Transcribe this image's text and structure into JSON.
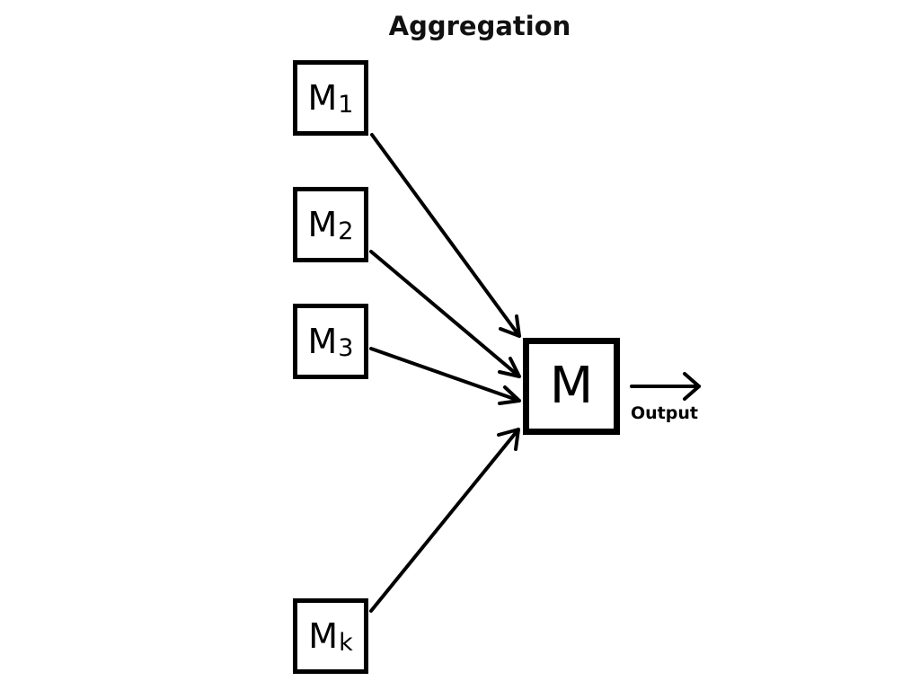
{
  "title": "Aggregation",
  "models": [
    {
      "letter": "M",
      "subscript": "1"
    },
    {
      "letter": "M",
      "subscript": "2"
    },
    {
      "letter": "M",
      "subscript": "3"
    },
    {
      "letter": "M",
      "subscript": "k"
    }
  ],
  "aggregate": {
    "letter": "M"
  },
  "output_label": "Output"
}
